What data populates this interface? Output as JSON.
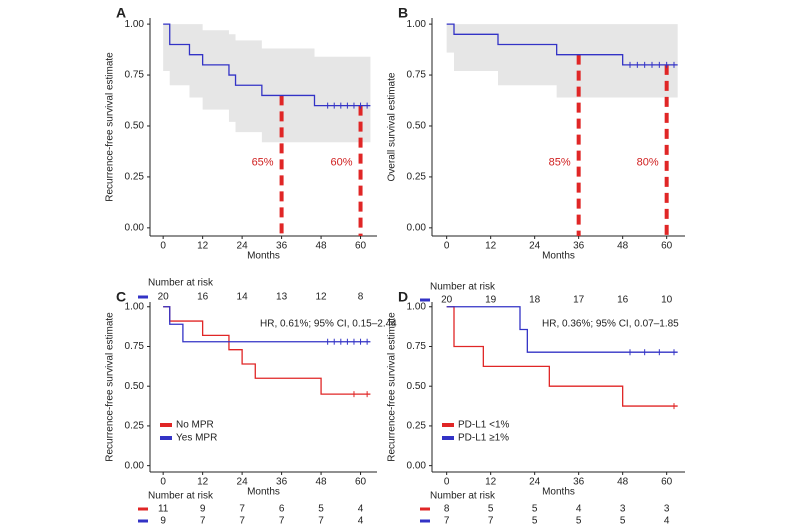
{
  "chart_data": [
    {
      "type": "step",
      "panel_label": "A",
      "y_label": "Recurrence-free survival estimate",
      "x_label": "Months",
      "xlim": [
        -4,
        65
      ],
      "ylim": [
        -0.04,
        1.03
      ],
      "xticks": [
        0,
        12,
        24,
        36,
        48,
        60
      ],
      "yticks": [
        {
          "value": 0,
          "label": "0.00"
        },
        {
          "value": 0.25,
          "label": "0.25"
        },
        {
          "value": 0.5,
          "label": "0.50"
        },
        {
          "value": 0.75,
          "label": "0.75"
        },
        {
          "value": 1,
          "label": "1.00"
        }
      ],
      "series": [
        {
          "color": "#3333c6",
          "x": [
            0,
            2,
            8,
            12,
            20,
            22,
            30,
            46,
            63
          ],
          "values": [
            1,
            0.9,
            0.85,
            0.8,
            0.75,
            0.7,
            0.65,
            0.6,
            0.6
          ],
          "ci_upper": [
            1,
            1,
            1,
            0.97,
            0.95,
            0.92,
            0.88,
            0.84,
            0.84
          ],
          "ci_lower": [
            1,
            0.77,
            0.7,
            0.64,
            0.58,
            0.52,
            0.47,
            0.42,
            0.42
          ],
          "censor_x": [
            50,
            52,
            54,
            56,
            58,
            60,
            62
          ]
        }
      ],
      "annotations": [
        {
          "x": 36,
          "y": 0.65,
          "label": "65%"
        },
        {
          "x": 60,
          "y": 0.6,
          "label": "60%"
        }
      ],
      "at_risk_title": "Number at risk",
      "at_risk": [
        {
          "color": "#3333c6",
          "values": [
            20,
            16,
            14,
            13,
            12,
            8
          ]
        }
      ]
    },
    {
      "type": "step",
      "panel_label": "B",
      "y_label": "Overall survival estimate",
      "x_label": "Months",
      "xlim": [
        -4,
        65
      ],
      "ylim": [
        -0.04,
        1.03
      ],
      "xticks": [
        0,
        12,
        24,
        36,
        48,
        60
      ],
      "yticks": [
        {
          "value": 0,
          "label": "0.00"
        },
        {
          "value": 0.25,
          "label": "0.25"
        },
        {
          "value": 0.5,
          "label": "0.50"
        },
        {
          "value": 0.75,
          "label": "0.75"
        },
        {
          "value": 1,
          "label": "1.00"
        }
      ],
      "series": [
        {
          "color": "#3333c6",
          "x": [
            0,
            2,
            14,
            30,
            48,
            63
          ],
          "values": [
            1,
            0.95,
            0.9,
            0.85,
            0.8,
            0.8
          ],
          "ci_upper": [
            1,
            1,
            1,
            1,
            1,
            1
          ],
          "ci_lower": [
            1,
            0.86,
            0.77,
            0.7,
            0.64,
            0.64
          ],
          "censor_x": [
            50,
            52,
            54,
            56,
            58,
            60,
            62
          ]
        }
      ],
      "annotations": [
        {
          "x": 36,
          "y": 0.85,
          "label": "85%"
        },
        {
          "x": 60,
          "y": 0.8,
          "label": "80%"
        }
      ],
      "at_risk_title": "Number at risk",
      "at_risk": [
        {
          "color": "#3333c6",
          "values": [
            20,
            19,
            18,
            17,
            16,
            10
          ]
        }
      ]
    },
    {
      "type": "step",
      "panel_label": "C",
      "y_label": "Recurrence-free survival estimate",
      "x_label": "Months",
      "xlim": [
        -4,
        65
      ],
      "ylim": [
        -0.04,
        1.03
      ],
      "xticks": [
        0,
        12,
        24,
        36,
        48,
        60
      ],
      "yticks": [
        {
          "value": 0,
          "label": "0.00"
        },
        {
          "value": 0.25,
          "label": "0.25"
        },
        {
          "value": 0.5,
          "label": "0.50"
        },
        {
          "value": 0.75,
          "label": "0.75"
        },
        {
          "value": 1,
          "label": "1.00"
        }
      ],
      "series": [
        {
          "name": "No MPR",
          "color": "#e02626",
          "x": [
            0,
            2,
            12,
            20,
            24,
            28,
            48,
            63
          ],
          "values": [
            1,
            0.91,
            0.82,
            0.73,
            0.64,
            0.55,
            0.45,
            0.45
          ],
          "censor_x": [
            58,
            62
          ]
        },
        {
          "name": "Yes MPR",
          "color": "#3333c6",
          "x": [
            0,
            2,
            6,
            63
          ],
          "values": [
            1,
            0.89,
            0.78,
            0.78
          ],
          "censor_x": [
            50,
            52,
            54,
            56,
            58,
            60,
            62
          ]
        }
      ],
      "hr_text": "HR, 0.61%; 95% CI, 0.15–2.44",
      "at_risk_title": "Number at risk",
      "at_risk": [
        {
          "color": "#e02626",
          "values": [
            11,
            9,
            7,
            6,
            5,
            4
          ]
        },
        {
          "color": "#3333c6",
          "values": [
            9,
            7,
            7,
            7,
            7,
            4
          ]
        }
      ]
    },
    {
      "type": "step",
      "panel_label": "D",
      "y_label": "Recurrence-free survival estimate",
      "x_label": "Months",
      "xlim": [
        -4,
        65
      ],
      "ylim": [
        -0.04,
        1.03
      ],
      "xticks": [
        0,
        12,
        24,
        36,
        48,
        60
      ],
      "yticks": [
        {
          "value": 0,
          "label": "0.00"
        },
        {
          "value": 0.25,
          "label": "0.25"
        },
        {
          "value": 0.5,
          "label": "0.50"
        },
        {
          "value": 0.75,
          "label": "0.75"
        },
        {
          "value": 1,
          "label": "1.00"
        }
      ],
      "series": [
        {
          "name": "PD-L1 <1%",
          "color": "#e02626",
          "x": [
            0,
            2,
            10,
            28,
            48,
            63
          ],
          "values": [
            1,
            0.75,
            0.625,
            0.5,
            0.375,
            0.375
          ],
          "censor_x": [
            62
          ]
        },
        {
          "name": "PD-L1 ≥1%",
          "color": "#3333c6",
          "x": [
            0,
            20,
            22,
            63
          ],
          "values": [
            1,
            0.857,
            0.714,
            0.714
          ],
          "censor_x": [
            50,
            54,
            58,
            62
          ]
        }
      ],
      "hr_text": "HR, 0.36%; 95% CI, 0.07–1.85",
      "at_risk_title": "Number at risk",
      "at_risk": [
        {
          "color": "#e02626",
          "values": [
            8,
            5,
            5,
            4,
            3,
            3
          ]
        },
        {
          "color": "#3333c6",
          "values": [
            7,
            7,
            5,
            5,
            5,
            4
          ]
        }
      ]
    }
  ]
}
